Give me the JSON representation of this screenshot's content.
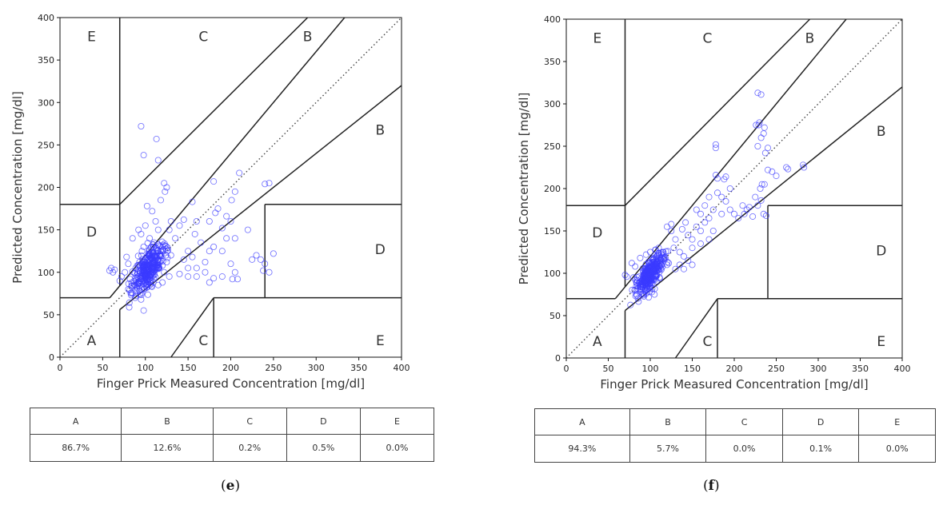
{
  "chart_data": [
    {
      "type": "scatter",
      "subtype": "clarke-error-grid",
      "panel_label": "(e)",
      "panel_letter": "e",
      "xlabel": "Finger Prick Measured Concentration [mg/dl]",
      "ylabel": "Predicted Concentration [mg/dl]",
      "xlim": [
        0,
        400
      ],
      "ylim": [
        0,
        400
      ],
      "xticks": [
        0,
        50,
        100,
        150,
        200,
        250,
        300,
        350,
        400
      ],
      "yticks": [
        0,
        50,
        100,
        150,
        200,
        250,
        300,
        350,
        400
      ],
      "zone_labels": [
        {
          "text": "E",
          "x": 37,
          "y": 378
        },
        {
          "text": "C",
          "x": 168,
          "y": 378
        },
        {
          "text": "B",
          "x": 290,
          "y": 378
        },
        {
          "text": "B",
          "x": 375,
          "y": 268
        },
        {
          "text": "D",
          "x": 37,
          "y": 148
        },
        {
          "text": "D",
          "x": 375,
          "y": 127
        },
        {
          "text": "A",
          "x": 37,
          "y": 20
        },
        {
          "text": "C",
          "x": 168,
          "y": 20
        },
        {
          "text": "E",
          "x": 375,
          "y": 20
        }
      ],
      "cluster": {
        "count": 320,
        "cx": 103,
        "cy": 103,
        "sx": 9,
        "sy": 11
      },
      "points": [
        [
          95,
          272
        ],
        [
          98,
          238
        ],
        [
          113,
          257
        ],
        [
          115,
          232
        ],
        [
          122,
          205
        ],
        [
          125,
          200
        ],
        [
          118,
          185
        ],
        [
          123,
          195
        ],
        [
          210,
          217
        ],
        [
          245,
          205
        ],
        [
          240,
          204
        ],
        [
          180,
          207
        ],
        [
          205,
          195
        ],
        [
          201,
          185
        ],
        [
          185,
          175
        ],
        [
          182,
          170
        ],
        [
          195,
          166
        ],
        [
          200,
          160
        ],
        [
          160,
          160
        ],
        [
          155,
          183
        ],
        [
          175,
          160
        ],
        [
          190,
          152
        ],
        [
          205,
          140
        ],
        [
          195,
          140
        ],
        [
          220,
          150
        ],
        [
          230,
          120
        ],
        [
          240,
          110
        ],
        [
          250,
          122
        ],
        [
          238,
          102
        ],
        [
          245,
          100
        ],
        [
          200,
          110
        ],
        [
          205,
          100
        ],
        [
          190,
          95
        ],
        [
          180,
          93
        ],
        [
          170,
          100
        ],
        [
          160,
          105
        ],
        [
          150,
          95
        ],
        [
          140,
          98
        ],
        [
          170,
          112
        ],
        [
          155,
          118
        ],
        [
          175,
          125
        ],
        [
          180,
          130
        ],
        [
          190,
          125
        ],
        [
          165,
          135
        ],
        [
          158,
          145
        ],
        [
          130,
          160
        ],
        [
          135,
          140
        ],
        [
          128,
          150
        ],
        [
          102,
          178
        ],
        [
          108,
          172
        ],
        [
          112,
          160
        ],
        [
          115,
          150
        ],
        [
          60,
          105
        ],
        [
          62,
          100
        ],
        [
          64,
          103
        ],
        [
          58,
          102
        ],
        [
          80,
          80
        ],
        [
          85,
          75
        ],
        [
          88,
          70
        ],
        [
          95,
          68
        ],
        [
          98,
          55
        ],
        [
          85,
          140
        ],
        [
          92,
          150
        ],
        [
          95,
          145
        ],
        [
          100,
          155
        ],
        [
          150,
          125
        ],
        [
          145,
          115
        ],
        [
          150,
          105
        ],
        [
          160,
          95
        ],
        [
          175,
          88
        ],
        [
          225,
          115
        ],
        [
          235,
          115
        ],
        [
          140,
          155
        ],
        [
          145,
          162
        ],
        [
          202,
          92
        ],
        [
          208,
          92
        ],
        [
          120,
          108
        ],
        [
          125,
          112
        ],
        [
          122,
          100
        ],
        [
          128,
          95
        ],
        [
          130,
          120
        ],
        [
          112,
          120
        ],
        [
          118,
          125
        ],
        [
          78,
          118
        ],
        [
          80,
          110
        ],
        [
          72,
          95
        ],
        [
          70,
          90
        ],
        [
          115,
          85
        ],
        [
          120,
          88
        ],
        [
          110,
          135
        ],
        [
          105,
          140
        ],
        [
          107,
          130
        ],
        [
          96,
          125
        ],
        [
          98,
          130
        ],
        [
          76,
          100
        ],
        [
          82,
          92
        ]
      ],
      "table": {
        "headers": [
          "A",
          "B",
          "C",
          "D",
          "E"
        ],
        "values": [
          "86.7%",
          "12.6%",
          "0.2%",
          "0.5%",
          "0.0%"
        ]
      }
    },
    {
      "type": "scatter",
      "subtype": "clarke-error-grid",
      "panel_label": "(f)",
      "panel_letter": "f",
      "xlabel": "Finger Prick Measured Concentration [mg/dl]",
      "ylabel": "Predicted Concentration [mg/dl]",
      "xlim": [
        0,
        400
      ],
      "ylim": [
        0,
        400
      ],
      "xticks": [
        0,
        50,
        100,
        150,
        200,
        250,
        300,
        350,
        400
      ],
      "yticks": [
        0,
        50,
        100,
        150,
        200,
        250,
        300,
        350,
        400
      ],
      "zone_labels": [
        {
          "text": "E",
          "x": 37,
          "y": 378
        },
        {
          "text": "C",
          "x": 168,
          "y": 378
        },
        {
          "text": "B",
          "x": 290,
          "y": 378
        },
        {
          "text": "B",
          "x": 375,
          "y": 268
        },
        {
          "text": "D",
          "x": 37,
          "y": 148
        },
        {
          "text": "D",
          "x": 375,
          "y": 127
        },
        {
          "text": "A",
          "x": 37,
          "y": 20
        },
        {
          "text": "C",
          "x": 168,
          "y": 20
        },
        {
          "text": "E",
          "x": 375,
          "y": 20
        }
      ],
      "cluster": {
        "count": 340,
        "cx": 100,
        "cy": 100,
        "sx": 8,
        "sy": 8
      },
      "points": [
        [
          228,
          313
        ],
        [
          232,
          311
        ],
        [
          230,
          278
        ],
        [
          229,
          275
        ],
        [
          235,
          265
        ],
        [
          232,
          260
        ],
        [
          240,
          248
        ],
        [
          228,
          250
        ],
        [
          237,
          242
        ],
        [
          178,
          252
        ],
        [
          178,
          248
        ],
        [
          190,
          214
        ],
        [
          188,
          211
        ],
        [
          178,
          216
        ],
        [
          180,
          212
        ],
        [
          240,
          222
        ],
        [
          245,
          220
        ],
        [
          233,
          205
        ],
        [
          236,
          205
        ],
        [
          231,
          200
        ],
        [
          262,
          225
        ],
        [
          264,
          223
        ],
        [
          282,
          228
        ],
        [
          283,
          225
        ],
        [
          250,
          215
        ],
        [
          210,
          180
        ],
        [
          215,
          175
        ],
        [
          212,
          170
        ],
        [
          218,
          178
        ],
        [
          228,
          180
        ],
        [
          235,
          170
        ],
        [
          238,
          168
        ],
        [
          232,
          186
        ],
        [
          225,
          190
        ],
        [
          222,
          167
        ],
        [
          200,
          170
        ],
        [
          205,
          165
        ],
        [
          195,
          175
        ],
        [
          190,
          185
        ],
        [
          185,
          170
        ],
        [
          170,
          165
        ],
        [
          165,
          160
        ],
        [
          160,
          150
        ],
        [
          155,
          155
        ],
        [
          150,
          140
        ],
        [
          145,
          145
        ],
        [
          150,
          130
        ],
        [
          160,
          135
        ],
        [
          170,
          140
        ],
        [
          175,
          150
        ],
        [
          140,
          120
        ],
        [
          135,
          125
        ],
        [
          145,
          115
        ],
        [
          150,
          110
        ],
        [
          130,
          140
        ],
        [
          125,
          150
        ],
        [
          120,
          155
        ],
        [
          125,
          158
        ],
        [
          128,
          130
        ],
        [
          135,
          110
        ],
        [
          140,
          105
        ],
        [
          130,
          105
        ],
        [
          120,
          110
        ],
        [
          115,
          125
        ],
        [
          110,
          130
        ],
        [
          108,
          120
        ],
        [
          118,
          118
        ],
        [
          122,
          112
        ],
        [
          155,
          175
        ],
        [
          165,
          180
        ],
        [
          185,
          190
        ],
        [
          195,
          200
        ],
        [
          180,
          195
        ],
        [
          170,
          190
        ],
        [
          142,
          160
        ],
        [
          138,
          152
        ],
        [
          160,
          170
        ],
        [
          175,
          175
        ],
        [
          105,
          75
        ],
        [
          95,
          80
        ],
        [
          85,
          85
        ],
        [
          80,
          95
        ],
        [
          78,
          112
        ],
        [
          82,
          108
        ],
        [
          88,
          118
        ],
        [
          95,
          122
        ],
        [
          100,
          125
        ],
        [
          112,
          118
        ],
        [
          70,
          98
        ],
        [
          72,
          96
        ],
        [
          226,
          275
        ],
        [
          236,
          272
        ]
      ],
      "table": {
        "headers": [
          "A",
          "B",
          "C",
          "D",
          "E"
        ],
        "values": [
          "94.3%",
          "5.7%",
          "0.0%",
          "0.1%",
          "0.0%"
        ]
      }
    }
  ],
  "colors": {
    "marker": "#3b3bff",
    "grid_lines": "#222222",
    "axis": "#111111"
  }
}
